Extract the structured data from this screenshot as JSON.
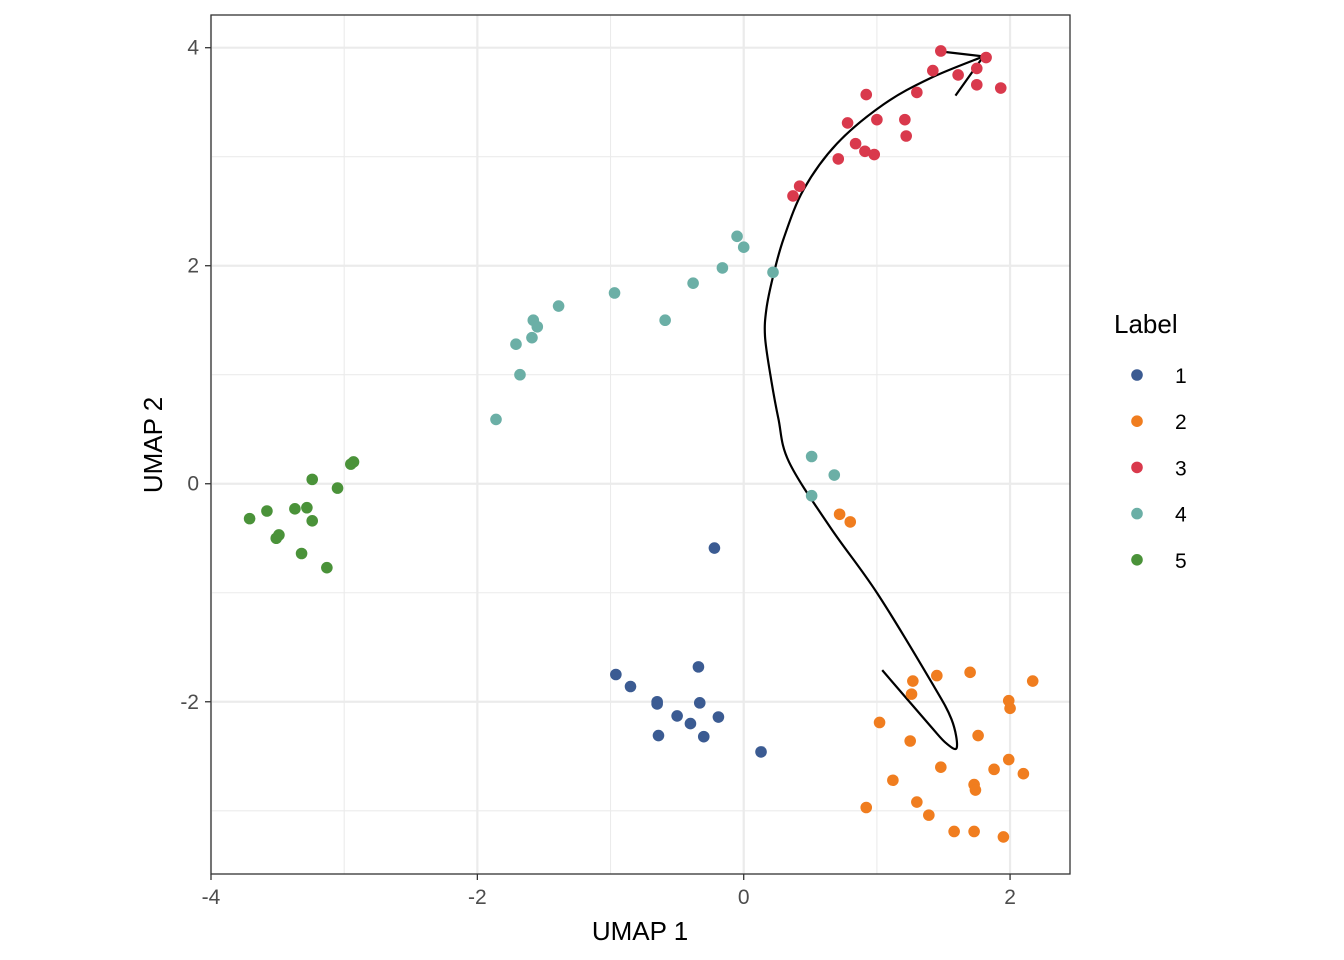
{
  "chart_data": {
    "type": "scatter",
    "xlabel": "UMAP 1",
    "ylabel": "UMAP 2",
    "xlim": [
      -4.0,
      2.45
    ],
    "ylim": [
      -3.58,
      4.3
    ],
    "x_ticks": [
      -4,
      -2,
      0,
      2
    ],
    "y_ticks": [
      -2,
      0,
      2,
      4
    ],
    "x_tick_labels": [
      "-4",
      "-2",
      "0",
      "2"
    ],
    "y_tick_labels": [
      "-2",
      "0",
      "2",
      "4"
    ],
    "grid": true,
    "legend": {
      "title": "Label",
      "placement": "right"
    },
    "series": [
      {
        "name": "1",
        "color": "#3B5B92",
        "points": [
          [
            -0.22,
            -0.59
          ],
          [
            -0.96,
            -1.75
          ],
          [
            -0.85,
            -1.86
          ],
          [
            -0.65,
            -2.0
          ],
          [
            -0.65,
            -2.02
          ],
          [
            -0.5,
            -2.13
          ],
          [
            -0.4,
            -2.2
          ],
          [
            -0.33,
            -2.01
          ],
          [
            -0.34,
            -1.68
          ],
          [
            -0.19,
            -2.14
          ],
          [
            -0.64,
            -2.31
          ],
          [
            -0.3,
            -2.32
          ],
          [
            0.13,
            -2.46
          ]
        ]
      },
      {
        "name": "2",
        "color": "#F07D1F",
        "points": [
          [
            0.72,
            -0.28
          ],
          [
            0.8,
            -0.35
          ],
          [
            1.27,
            -1.81
          ],
          [
            1.26,
            -1.93
          ],
          [
            1.45,
            -1.76
          ],
          [
            1.7,
            -1.73
          ],
          [
            1.99,
            -1.99
          ],
          [
            2.0,
            -2.06
          ],
          [
            2.17,
            -1.81
          ],
          [
            1.02,
            -2.19
          ],
          [
            1.25,
            -2.36
          ],
          [
            1.76,
            -2.31
          ],
          [
            1.48,
            -2.6
          ],
          [
            1.12,
            -2.72
          ],
          [
            1.73,
            -2.76
          ],
          [
            1.74,
            -2.81
          ],
          [
            1.88,
            -2.62
          ],
          [
            1.99,
            -2.53
          ],
          [
            2.1,
            -2.66
          ],
          [
            0.92,
            -2.97
          ],
          [
            1.3,
            -2.92
          ],
          [
            1.39,
            -3.04
          ],
          [
            1.58,
            -3.19
          ],
          [
            1.73,
            -3.19
          ],
          [
            1.95,
            -3.24
          ]
        ]
      },
      {
        "name": "3",
        "color": "#D9394C",
        "points": [
          [
            1.48,
            3.97
          ],
          [
            1.42,
            3.79
          ],
          [
            1.61,
            3.75
          ],
          [
            1.75,
            3.81
          ],
          [
            1.82,
            3.91
          ],
          [
            1.75,
            3.66
          ],
          [
            1.93,
            3.63
          ],
          [
            1.3,
            3.59
          ],
          [
            0.92,
            3.57
          ],
          [
            0.78,
            3.31
          ],
          [
            1.0,
            3.34
          ],
          [
            1.21,
            3.34
          ],
          [
            1.22,
            3.19
          ],
          [
            0.84,
            3.12
          ],
          [
            0.91,
            3.05
          ],
          [
            0.98,
            3.02
          ],
          [
            0.71,
            2.98
          ],
          [
            0.42,
            2.73
          ],
          [
            0.37,
            2.64
          ]
        ]
      },
      {
        "name": "4",
        "color": "#6BAFA6",
        "points": [
          [
            -0.05,
            2.27
          ],
          [
            0.0,
            2.17
          ],
          [
            -0.16,
            1.98
          ],
          [
            0.22,
            1.94
          ],
          [
            -0.38,
            1.84
          ],
          [
            -0.97,
            1.75
          ],
          [
            -0.59,
            1.5
          ],
          [
            -1.39,
            1.63
          ],
          [
            -1.58,
            1.5
          ],
          [
            -1.55,
            1.44
          ],
          [
            -1.59,
            1.34
          ],
          [
            -1.71,
            1.28
          ],
          [
            -1.68,
            1.0
          ],
          [
            -1.86,
            0.59
          ],
          [
            0.51,
            0.25
          ],
          [
            0.68,
            0.08
          ],
          [
            0.51,
            -0.11
          ]
        ]
      },
      {
        "name": "5",
        "color": "#4A9239",
        "points": [
          [
            -3.24,
            0.04
          ],
          [
            -2.95,
            0.18
          ],
          [
            -2.93,
            0.2
          ],
          [
            -3.05,
            -0.04
          ],
          [
            -3.71,
            -0.32
          ],
          [
            -3.58,
            -0.25
          ],
          [
            -3.37,
            -0.23
          ],
          [
            -3.28,
            -0.22
          ],
          [
            -3.24,
            -0.34
          ],
          [
            -3.49,
            -0.47
          ],
          [
            -3.51,
            -0.5
          ],
          [
            -3.32,
            -0.64
          ],
          [
            -3.13,
            -0.77
          ]
        ]
      }
    ],
    "annotations": [
      {
        "type": "arrow",
        "color": "#000000",
        "path": [
          [
            1.04,
            -1.71
          ],
          [
            1.4,
            -2.22
          ],
          [
            1.52,
            -2.38
          ],
          [
            1.6,
            -2.42
          ],
          [
            1.56,
            -2.16
          ],
          [
            1.4,
            -1.8
          ],
          [
            1.0,
            -1.0
          ],
          [
            0.65,
            -0.4
          ],
          [
            0.34,
            0.2
          ],
          [
            0.26,
            0.6
          ],
          [
            0.2,
            1.0
          ],
          [
            0.16,
            1.35
          ],
          [
            0.17,
            1.6
          ],
          [
            0.22,
            1.9
          ],
          [
            0.3,
            2.25
          ],
          [
            0.45,
            2.7
          ],
          [
            0.7,
            3.12
          ],
          [
            1.05,
            3.48
          ],
          [
            1.4,
            3.72
          ],
          [
            1.8,
            3.92
          ]
        ],
        "head": [
          [
            1.45,
            3.97
          ],
          [
            1.8,
            3.92
          ],
          [
            1.59,
            3.56
          ]
        ]
      }
    ]
  }
}
